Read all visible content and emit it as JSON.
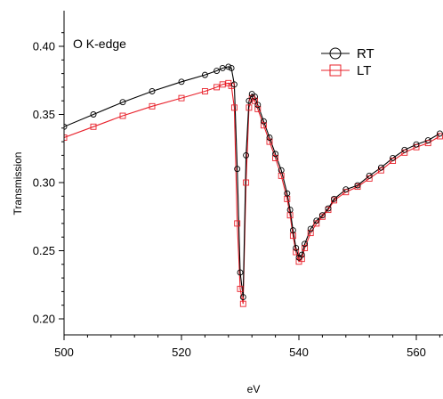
{
  "chart_data": {
    "type": "line",
    "annotation": "O K-edge",
    "xlabel": "eV",
    "ylabel": "Transmission",
    "xlim": [
      500,
      564
    ],
    "ylim": [
      0.18,
      0.42
    ],
    "xticks": [
      500,
      520,
      540,
      560
    ],
    "yticks": [
      0.2,
      0.25,
      0.3,
      0.35,
      0.4
    ],
    "ytick_labels": [
      "0.20",
      "0.25",
      "0.30",
      "0.35",
      "0.40"
    ],
    "grid": false,
    "legend_position": "top-right",
    "series": [
      {
        "name": "RT",
        "color": "#000000",
        "marker": "circle",
        "x": [
          500,
          505,
          510,
          515,
          520,
          524,
          526,
          527,
          528,
          528.5,
          529,
          529.5,
          530,
          530.5,
          531,
          531.5,
          532,
          532.5,
          533,
          534,
          535,
          536,
          537,
          538,
          538.5,
          539,
          539.5,
          540,
          540.5,
          541,
          542,
          543,
          544,
          545,
          546,
          548,
          550,
          552,
          554,
          556,
          558,
          560,
          562,
          564
        ],
        "y": [
          0.341,
          0.35,
          0.359,
          0.367,
          0.374,
          0.379,
          0.382,
          0.384,
          0.385,
          0.384,
          0.372,
          0.31,
          0.234,
          0.216,
          0.32,
          0.36,
          0.365,
          0.363,
          0.357,
          0.345,
          0.333,
          0.321,
          0.309,
          0.292,
          0.28,
          0.265,
          0.252,
          0.245,
          0.247,
          0.255,
          0.266,
          0.272,
          0.276,
          0.281,
          0.288,
          0.295,
          0.298,
          0.305,
          0.311,
          0.318,
          0.324,
          0.328,
          0.331,
          0.336
        ]
      },
      {
        "name": "LT",
        "color": "#e8202a",
        "marker": "square",
        "x": [
          500,
          505,
          510,
          515,
          520,
          524,
          526,
          527,
          528,
          528.5,
          529,
          529.5,
          530,
          530.5,
          531,
          531.5,
          532,
          532.5,
          533,
          534,
          535,
          536,
          537,
          538,
          538.5,
          539,
          539.5,
          540,
          540.5,
          541,
          542,
          543,
          544,
          545,
          546,
          548,
          550,
          552,
          554,
          556,
          558,
          560,
          562,
          564
        ],
        "y": [
          0.333,
          0.341,
          0.349,
          0.356,
          0.362,
          0.367,
          0.37,
          0.372,
          0.373,
          0.371,
          0.355,
          0.27,
          0.222,
          0.211,
          0.3,
          0.355,
          0.362,
          0.36,
          0.354,
          0.342,
          0.33,
          0.318,
          0.305,
          0.288,
          0.276,
          0.261,
          0.249,
          0.242,
          0.244,
          0.252,
          0.263,
          0.27,
          0.275,
          0.28,
          0.287,
          0.293,
          0.297,
          0.303,
          0.309,
          0.316,
          0.322,
          0.326,
          0.329,
          0.334
        ]
      }
    ]
  }
}
